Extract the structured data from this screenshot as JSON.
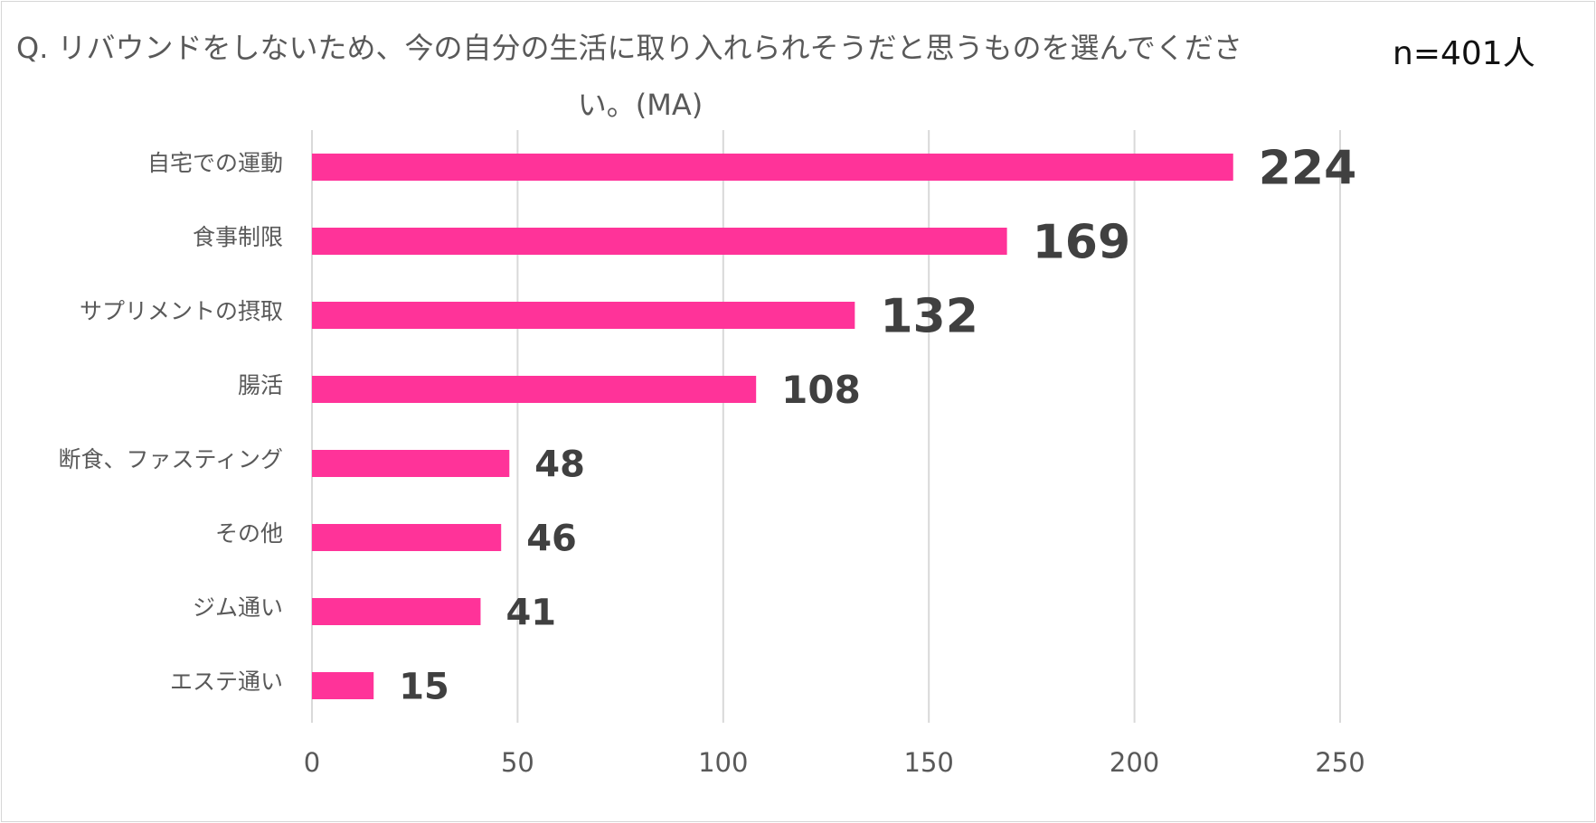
{
  "title_line1": "Q. リバウンドをしないため、今の自分の生活に取り入れられそうだと思うものを選んでくださ",
  "title_line2": "い。(MA)",
  "sample_size": "n=401人",
  "colors": {
    "bar": "#ff3399",
    "grid": "#d9d9d9",
    "text": "#595959",
    "value": "#404040"
  },
  "chart_data": {
    "type": "bar",
    "orientation": "horizontal",
    "title": "Q. リバウンドをしないため、今の自分の生活に取り入れられそうだと思うものを選んでください。(MA)",
    "categories": [
      "自宅での運動",
      "食事制限",
      "サプリメントの摂取",
      "腸活",
      "断食、ファスティング",
      "その他",
      "ジム通い",
      "エステ通い"
    ],
    "values": [
      224,
      169,
      132,
      108,
      48,
      46,
      41,
      15
    ],
    "xlim": [
      0,
      250
    ],
    "xticks": [
      0,
      50,
      100,
      150,
      200,
      250
    ],
    "grid": "vertical",
    "legend": "none"
  }
}
